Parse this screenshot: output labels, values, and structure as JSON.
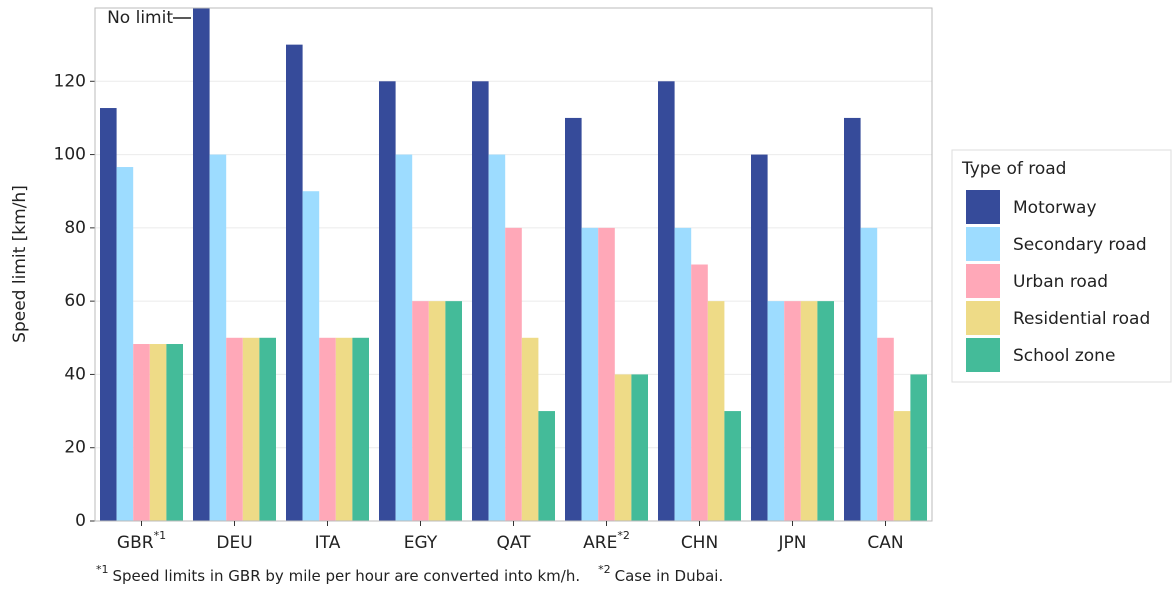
{
  "chart_data": {
    "type": "bar",
    "y_label": "Speed limit [km/h]",
    "categories": [
      "GBR",
      "DEU",
      "ITA",
      "EGY",
      "QAT",
      "ARE",
      "CHN",
      "JPN",
      "CAN"
    ],
    "category_marks": [
      "*1",
      null,
      null,
      null,
      null,
      "*2",
      null,
      null,
      null
    ],
    "legend_title": "Type of road",
    "series": [
      {
        "name": "Motorway",
        "color": "#364b9a",
        "values": [
          112.7,
          null,
          130,
          120,
          120,
          110,
          120,
          100,
          110
        ]
      },
      {
        "name": "Secondary road",
        "color": "#9ddcff",
        "values": [
          96.6,
          100,
          90,
          100,
          100,
          80,
          80,
          60,
          80
        ]
      },
      {
        "name": "Urban road",
        "color": "#ffa8b8",
        "values": [
          48.3,
          50,
          50,
          60,
          80,
          80,
          70,
          60,
          50
        ]
      },
      {
        "name": "Residential road",
        "color": "#eedb87",
        "values": [
          48.3,
          50,
          50,
          60,
          50,
          40,
          60,
          60,
          30
        ]
      },
      {
        "name": "School zone",
        "color": "#44bb99",
        "values": [
          48.3,
          50,
          50,
          60,
          30,
          40,
          30,
          60,
          40
        ]
      }
    ],
    "annotation": "No limit",
    "ylim": [
      0,
      140
    ],
    "yticks": [
      0,
      20,
      40,
      60,
      80,
      100,
      120
    ],
    "grid": true,
    "footnotes": [
      {
        "mark": "*1",
        "text": "Speed limits in GBR by mile per hour are converted into km/h."
      },
      {
        "mark": "*2",
        "text": "Case in Dubai."
      }
    ]
  }
}
